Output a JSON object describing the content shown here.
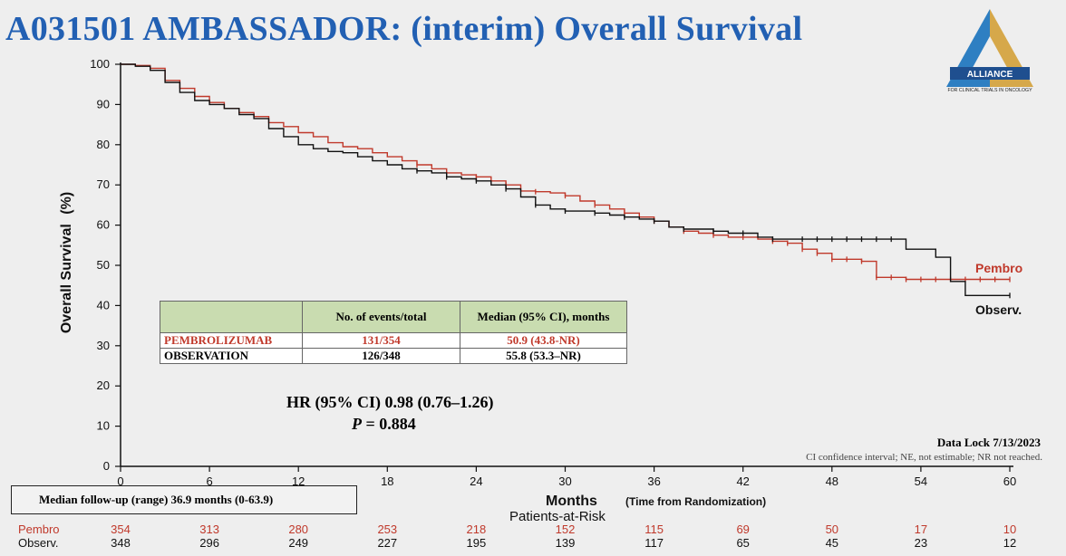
{
  "title": "A031501 AMBASSADOR: (interim) Overall Survival",
  "logo": {
    "name": "ALLIANCE",
    "subtitle": "FOR CLINICAL TRIALS IN ONCOLOGY"
  },
  "chart_data": {
    "type": "line",
    "subtype": "kaplan-meier",
    "xlabel": "Months",
    "xlabel_note": "(Time from Randomization)",
    "ylabel": "Overall Survival",
    "ylabel_unit": "(%)",
    "xlim": [
      0,
      60
    ],
    "ylim": [
      0,
      100
    ],
    "x_ticks": [
      0,
      6,
      12,
      18,
      24,
      30,
      36,
      42,
      48,
      54,
      60
    ],
    "y_ticks": [
      0,
      10,
      20,
      30,
      40,
      50,
      60,
      70,
      80,
      90,
      100
    ],
    "grid": false,
    "series": [
      {
        "name": "Pembro",
        "color": "#c0392b",
        "points": [
          [
            0,
            100
          ],
          [
            1,
            99.7
          ],
          [
            2,
            99
          ],
          [
            3,
            96
          ],
          [
            4,
            94
          ],
          [
            5,
            92
          ],
          [
            6,
            90.5
          ],
          [
            7,
            89
          ],
          [
            8,
            88
          ],
          [
            9,
            87
          ],
          [
            10,
            85.5
          ],
          [
            11,
            84.5
          ],
          [
            12,
            83
          ],
          [
            13,
            82
          ],
          [
            14,
            80.5
          ],
          [
            15,
            79.5
          ],
          [
            16,
            79
          ],
          [
            17,
            78
          ],
          [
            18,
            77
          ],
          [
            19,
            76
          ],
          [
            20,
            75
          ],
          [
            21,
            74
          ],
          [
            22,
            73
          ],
          [
            23,
            72.5
          ],
          [
            24,
            72
          ],
          [
            25,
            71
          ],
          [
            26,
            70
          ],
          [
            27,
            68.5
          ],
          [
            28,
            68.3
          ],
          [
            29,
            68
          ],
          [
            30,
            67.3
          ],
          [
            31,
            66
          ],
          [
            32,
            65
          ],
          [
            33,
            64
          ],
          [
            34,
            63
          ],
          [
            35,
            62
          ],
          [
            36,
            61
          ],
          [
            37,
            59.5
          ],
          [
            38,
            58.5
          ],
          [
            39,
            58
          ],
          [
            40,
            57.5
          ],
          [
            41,
            57
          ],
          [
            42,
            57
          ],
          [
            43,
            56.5
          ],
          [
            44,
            56
          ],
          [
            45,
            55.5
          ],
          [
            46,
            54
          ],
          [
            47,
            53
          ],
          [
            48,
            51.5
          ],
          [
            49,
            51.5
          ],
          [
            50,
            51
          ],
          [
            51,
            47
          ],
          [
            52,
            47
          ],
          [
            53,
            46.5
          ],
          [
            54,
            46.5
          ],
          [
            55,
            46.5
          ],
          [
            56,
            46.5
          ],
          [
            57,
            46.5
          ],
          [
            58,
            46.5
          ],
          [
            59,
            46.5
          ],
          [
            60,
            46.5
          ]
        ],
        "censor_x": [
          20,
          24,
          26,
          28,
          30,
          32,
          34,
          36,
          38,
          40,
          42,
          44,
          45,
          46,
          47,
          48,
          49,
          50,
          51,
          52,
          53,
          54,
          55,
          56,
          57,
          58,
          59,
          60
        ]
      },
      {
        "name": "Observ.",
        "color": "#111111",
        "points": [
          [
            0,
            100
          ],
          [
            1,
            99.5
          ],
          [
            2,
            98.5
          ],
          [
            3,
            95.5
          ],
          [
            4,
            93
          ],
          [
            5,
            91
          ],
          [
            6,
            90
          ],
          [
            7,
            89
          ],
          [
            8,
            87.5
          ],
          [
            9,
            86.5
          ],
          [
            10,
            84
          ],
          [
            11,
            82
          ],
          [
            12,
            80
          ],
          [
            13,
            79
          ],
          [
            14,
            78.3
          ],
          [
            15,
            78
          ],
          [
            16,
            77
          ],
          [
            17,
            76
          ],
          [
            18,
            75
          ],
          [
            19,
            74
          ],
          [
            20,
            73.5
          ],
          [
            21,
            73
          ],
          [
            22,
            72
          ],
          [
            23,
            71.5
          ],
          [
            24,
            71
          ],
          [
            25,
            70
          ],
          [
            26,
            69
          ],
          [
            27,
            67
          ],
          [
            28,
            65
          ],
          [
            29,
            64
          ],
          [
            30,
            63.5
          ],
          [
            31,
            63.5
          ],
          [
            32,
            63
          ],
          [
            33,
            62.5
          ],
          [
            34,
            62
          ],
          [
            35,
            61.5
          ],
          [
            36,
            61
          ],
          [
            37,
            59.5
          ],
          [
            38,
            59
          ],
          [
            39,
            59
          ],
          [
            40,
            58.5
          ],
          [
            41,
            58
          ],
          [
            42,
            58
          ],
          [
            43,
            57
          ],
          [
            44,
            56.5
          ],
          [
            45,
            56.5
          ],
          [
            46,
            56.5
          ],
          [
            47,
            56.5
          ],
          [
            48,
            56.5
          ],
          [
            49,
            56.5
          ],
          [
            50,
            56.5
          ],
          [
            51,
            56.5
          ],
          [
            52,
            56.5
          ],
          [
            53,
            54
          ],
          [
            54,
            54
          ],
          [
            55,
            52
          ],
          [
            56,
            46
          ],
          [
            57,
            42.5
          ],
          [
            58,
            42.5
          ],
          [
            59,
            42.5
          ],
          [
            60,
            42.5
          ]
        ],
        "censor_x": [
          20,
          22,
          24,
          26,
          28,
          30,
          32,
          34,
          36,
          38,
          40,
          42,
          44,
          46,
          47,
          48,
          49,
          50,
          51,
          52,
          60
        ]
      }
    ],
    "at_risk": {
      "title": "Patients-at-Risk",
      "rows": [
        {
          "label": "Pembro",
          "color": "#c0392b",
          "values": [
            354,
            313,
            280,
            253,
            218,
            152,
            115,
            69,
            50,
            17,
            10
          ]
        },
        {
          "label": "Observ.",
          "color": "#111111",
          "values": [
            348,
            296,
            249,
            227,
            195,
            139,
            117,
            65,
            45,
            23,
            12
          ]
        }
      ]
    }
  },
  "events_table": {
    "headers": [
      "",
      "No. of events/total",
      "Median (95% CI), months"
    ],
    "rows": [
      {
        "arm": "PEMBROLIZUMAB",
        "events": "131/354",
        "median": "50.9 (43.8-NR)"
      },
      {
        "arm": "OBSERVATION",
        "events": "126/348",
        "median": "55.8 (53.3–NR)"
      }
    ]
  },
  "hr_text": "HR (95% CI) 0.98 (0.76–1.26)",
  "p_label": "P",
  "p_value": " = 0.884",
  "data_lock": "Data Lock 7/13/2023",
  "ci_note": "CI confidence interval; NE, not estimable; NR not reached.",
  "followup": "Median follow-up (range)   36.9 months (0-63.9)"
}
